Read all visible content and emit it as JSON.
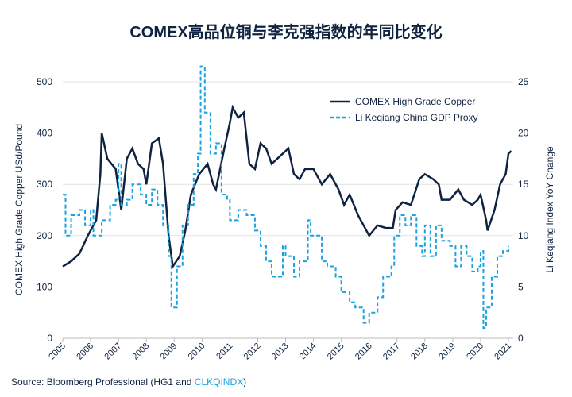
{
  "chart_data": {
    "type": "line",
    "title": "COMEX高品位铜与李克强指数的年同比变化",
    "ylabel": "COMEX High Grade Copper USd/Pound",
    "y2label": "Li Keqiang Index YoY Change",
    "ylim": [
      0,
      500
    ],
    "y2lim": [
      0,
      25
    ],
    "xlim": [
      2005,
      2021
    ],
    "yticks": [
      "0",
      "100",
      "200",
      "300",
      "400",
      "500"
    ],
    "y2ticks": [
      "0",
      "5",
      "10",
      "15",
      "20",
      "25"
    ],
    "xticks": [
      "2005",
      "2006",
      "2007",
      "2008",
      "2009",
      "2010",
      "2011",
      "2012",
      "2013",
      "2014",
      "2015",
      "2016",
      "2017",
      "2018",
      "2019",
      "2020",
      "2021"
    ],
    "grid": true,
    "legend": "top-right",
    "series": [
      {
        "name": "COMEX High Grade Copper",
        "axis": "left",
        "color": "#0f2341",
        "style": "solid",
        "x": [
          2005.0,
          2005.3,
          2005.6,
          2005.9,
          2006.2,
          2006.35,
          2006.4,
          2006.6,
          2006.9,
          2007.1,
          2007.3,
          2007.5,
          2007.7,
          2007.9,
          2008.0,
          2008.2,
          2008.45,
          2008.6,
          2008.8,
          2008.95,
          2009.2,
          2009.4,
          2009.6,
          2009.9,
          2010.2,
          2010.4,
          2010.5,
          2010.8,
          2011.0,
          2011.1,
          2011.3,
          2011.5,
          2011.7,
          2011.9,
          2012.1,
          2012.3,
          2012.5,
          2012.7,
          2012.9,
          2013.1,
          2013.3,
          2013.5,
          2013.7,
          2014.0,
          2014.3,
          2014.6,
          2014.9,
          2015.1,
          2015.3,
          2015.6,
          2015.9,
          2016.0,
          2016.3,
          2016.6,
          2016.85,
          2016.95,
          2017.2,
          2017.5,
          2017.8,
          2018.0,
          2018.3,
          2018.5,
          2018.6,
          2018.9,
          2019.2,
          2019.4,
          2019.7,
          2019.9,
          2020.0,
          2020.2,
          2020.25,
          2020.5,
          2020.7,
          2020.9,
          2021.0,
          2021.1
        ],
        "y": [
          140,
          150,
          165,
          200,
          230,
          320,
          400,
          350,
          330,
          250,
          350,
          370,
          340,
          330,
          300,
          380,
          390,
          340,
          200,
          140,
          160,
          210,
          280,
          320,
          340,
          300,
          290,
          370,
          420,
          450,
          430,
          440,
          340,
          330,
          380,
          370,
          340,
          350,
          360,
          370,
          320,
          310,
          330,
          330,
          300,
          320,
          290,
          260,
          280,
          240,
          210,
          200,
          220,
          215,
          215,
          250,
          265,
          260,
          310,
          320,
          310,
          300,
          270,
          270,
          290,
          270,
          260,
          270,
          280,
          230,
          210,
          250,
          300,
          320,
          360,
          365
        ]
      },
      {
        "name": "Li Keqiang China GDP Proxy",
        "axis": "right",
        "color": "#1aa3e0",
        "style": "dashed-step",
        "x": [
          2005.0,
          2005.1,
          2005.3,
          2005.6,
          2005.8,
          2006.0,
          2006.1,
          2006.4,
          2006.7,
          2006.9,
          2007.0,
          2007.1,
          2007.3,
          2007.5,
          2007.8,
          2008.0,
          2008.2,
          2008.4,
          2008.6,
          2008.8,
          2008.9,
          2009.1,
          2009.3,
          2009.5,
          2009.7,
          2009.85,
          2009.95,
          2010.1,
          2010.3,
          2010.5,
          2010.7,
          2010.9,
          2011.0,
          2011.3,
          2011.6,
          2011.9,
          2012.1,
          2012.3,
          2012.5,
          2012.9,
          2013.0,
          2013.3,
          2013.5,
          2013.8,
          2013.9,
          2014.1,
          2014.3,
          2014.5,
          2014.8,
          2015.0,
          2015.3,
          2015.5,
          2015.8,
          2016.0,
          2016.3,
          2016.5,
          2016.8,
          2016.9,
          2017.1,
          2017.3,
          2017.5,
          2017.7,
          2017.9,
          2018.0,
          2018.2,
          2018.4,
          2018.6,
          2018.9,
          2019.1,
          2019.3,
          2019.5,
          2019.7,
          2019.9,
          2020.0,
          2020.1,
          2020.2,
          2020.4,
          2020.6,
          2020.8,
          2021.0
        ],
        "y": [
          14,
          10,
          12,
          12.5,
          11,
          12.5,
          10,
          11.5,
          13,
          13.5,
          17,
          13,
          13.5,
          15,
          14,
          13,
          14.5,
          13,
          11,
          8,
          3,
          7,
          11,
          13,
          16,
          18,
          26.5,
          22,
          18,
          19,
          14,
          13.5,
          11.5,
          12.5,
          12,
          10.5,
          9,
          7.5,
          6,
          9,
          8,
          6,
          7.5,
          11.5,
          10,
          10,
          7.5,
          7,
          6,
          4.5,
          3.5,
          3,
          1.5,
          2.5,
          4,
          6,
          7,
          10,
          12,
          11,
          12,
          9,
          8,
          11,
          8,
          11,
          9.5,
          9,
          7,
          9,
          8,
          6.5,
          7,
          8.5,
          1,
          3,
          6,
          8,
          8.5,
          9
        ]
      }
    ]
  },
  "source": {
    "prefix": "Source: Bloomberg Professional (HG1 and ",
    "link": "CLKQINDX",
    "suffix": ")"
  }
}
